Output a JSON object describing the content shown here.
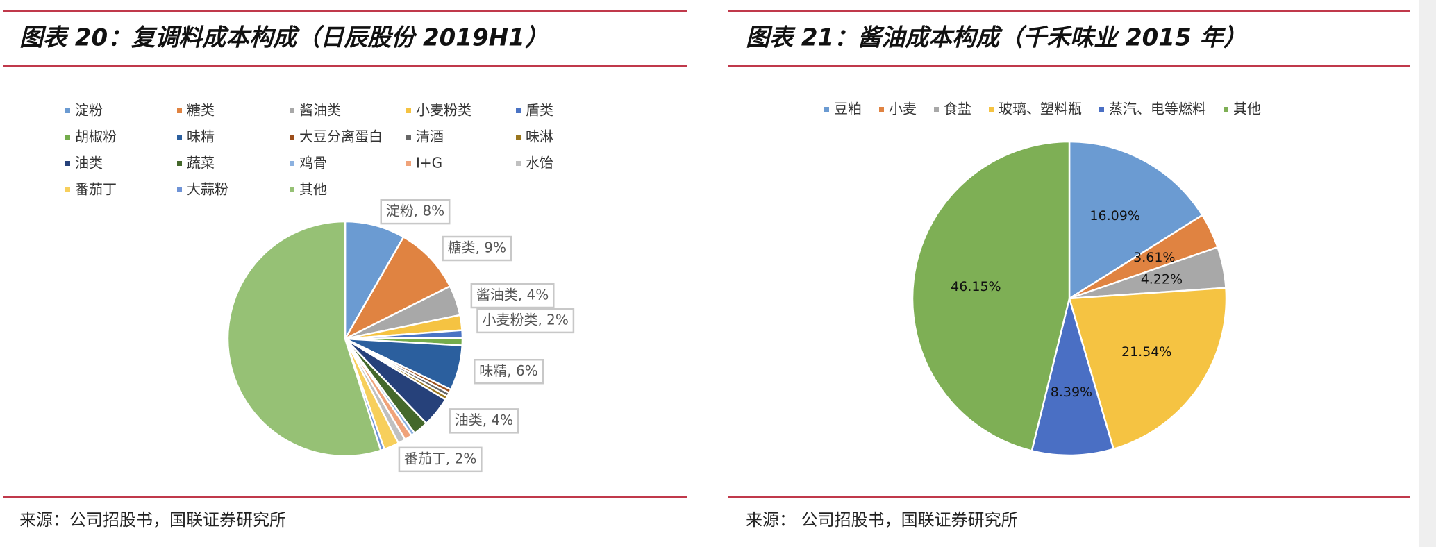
{
  "chart_data": [
    {
      "type": "pie",
      "title": "图表 20：复调料成本构成（日辰股份 2019H1）",
      "categories": [
        "淀粉",
        "糖类",
        "酱油类",
        "小麦粉类",
        "盾类",
        "胡椒粉",
        "味精",
        "大豆分离蛋白",
        "清酒",
        "味淋",
        "油类",
        "蔬菜",
        "鸡骨",
        "I+G",
        "水饴",
        "番茄丁",
        "大蒜粉",
        "其他"
      ],
      "values": [
        8,
        9,
        4,
        2,
        1,
        1,
        6,
        0.5,
        0.5,
        0.5,
        4,
        2,
        0.5,
        1,
        1,
        2,
        0.5,
        53
      ],
      "value_labels": [
        "淀粉, 8%",
        "糖类, 9%",
        "酱油类, 4%",
        "小麦粉类, 2%",
        null,
        null,
        "味精, 6%",
        null,
        null,
        null,
        "油类, 4%",
        null,
        null,
        null,
        null,
        "番茄丁, 2%",
        null,
        null
      ],
      "colors": [
        "#6b9bd2",
        "#e08341",
        "#a8a8a8",
        "#f5c342",
        "#4a73c4",
        "#74ac4c",
        "#2b5f9e",
        "#9c4e1a",
        "#666666",
        "#99761e",
        "#26417a",
        "#44682b",
        "#8cb1e0",
        "#f0a37a",
        "#c0c0c0",
        "#f7cf5c",
        "#6f93d6",
        "#96c175"
      ],
      "source": "来源：公司招股书，国联证券研究所"
    },
    {
      "type": "pie",
      "title": "图表 21：酱油成本构成（千禾味业 2015 年）",
      "categories": [
        "豆粕",
        "小麦",
        "食盐",
        "玻璃、塑料瓶",
        "蒸汽、电等燃料",
        "其他"
      ],
      "values": [
        16.09,
        3.61,
        4.22,
        21.54,
        8.39,
        46.15
      ],
      "value_labels": [
        "16.09%",
        "3.61%",
        "4.22%",
        "21.54%",
        "8.39%",
        "46.15%"
      ],
      "colors": [
        "#6b9bd2",
        "#e08341",
        "#a8a8a8",
        "#f5c342",
        "#4a6fc4",
        "#7eaf55"
      ],
      "source": "来源： 公司招股书，国联证券研究所"
    }
  ]
}
